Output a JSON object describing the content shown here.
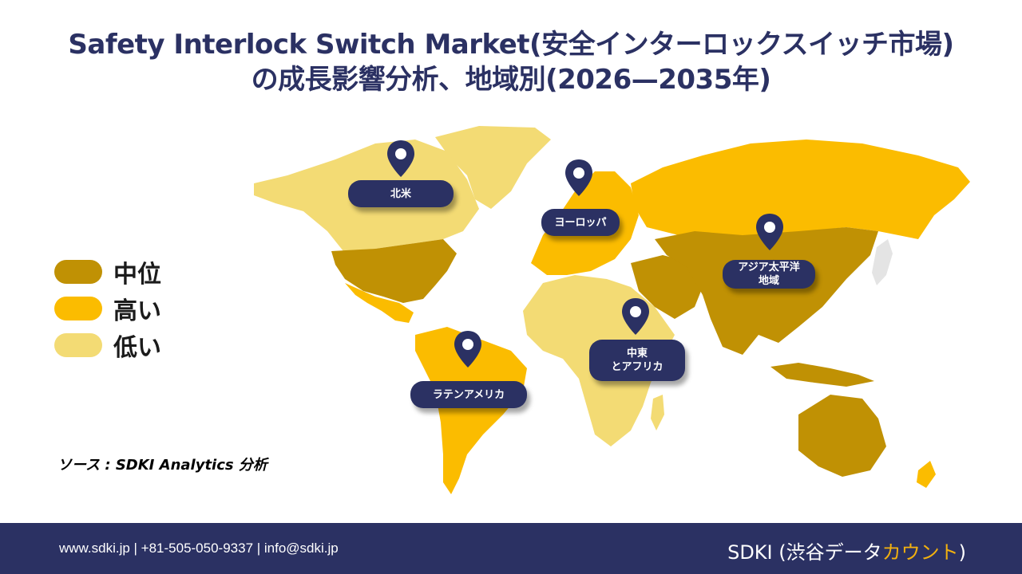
{
  "title": {
    "line1": "Safety Interlock Switch Market(安全インターロックスイッチ市場)",
    "line2": "の成長影響分析、地域別(2026—2035年)"
  },
  "legend": [
    {
      "label": "中位",
      "color": "#c09104"
    },
    {
      "label": "高い",
      "color": "#fbbc00"
    },
    {
      "label": "低い",
      "color": "#f3db74"
    }
  ],
  "regions": {
    "north_america": "北米",
    "europe": "ヨーロッパ",
    "asia_pacific": "アジア太平洋\n地域",
    "middle_east_africa": "中東\nとアフリカ",
    "latin_america": "ラテンアメリカ"
  },
  "source": "ソース : SDKI Analytics 分析",
  "footer": {
    "contact": "www.sdki.jp | +81-505-050-9337 | info@sdki.jp",
    "brand_main": "SDKI (渋谷データ",
    "brand_accent": "カウント",
    "brand_close": ")"
  },
  "colors": {
    "navy": "#2b3163",
    "medium": "#c09104",
    "high": "#fbbc00",
    "low": "#f3db74",
    "unlisted": "#e4e4e4"
  },
  "icons": {
    "pin": "map-pin-icon"
  }
}
